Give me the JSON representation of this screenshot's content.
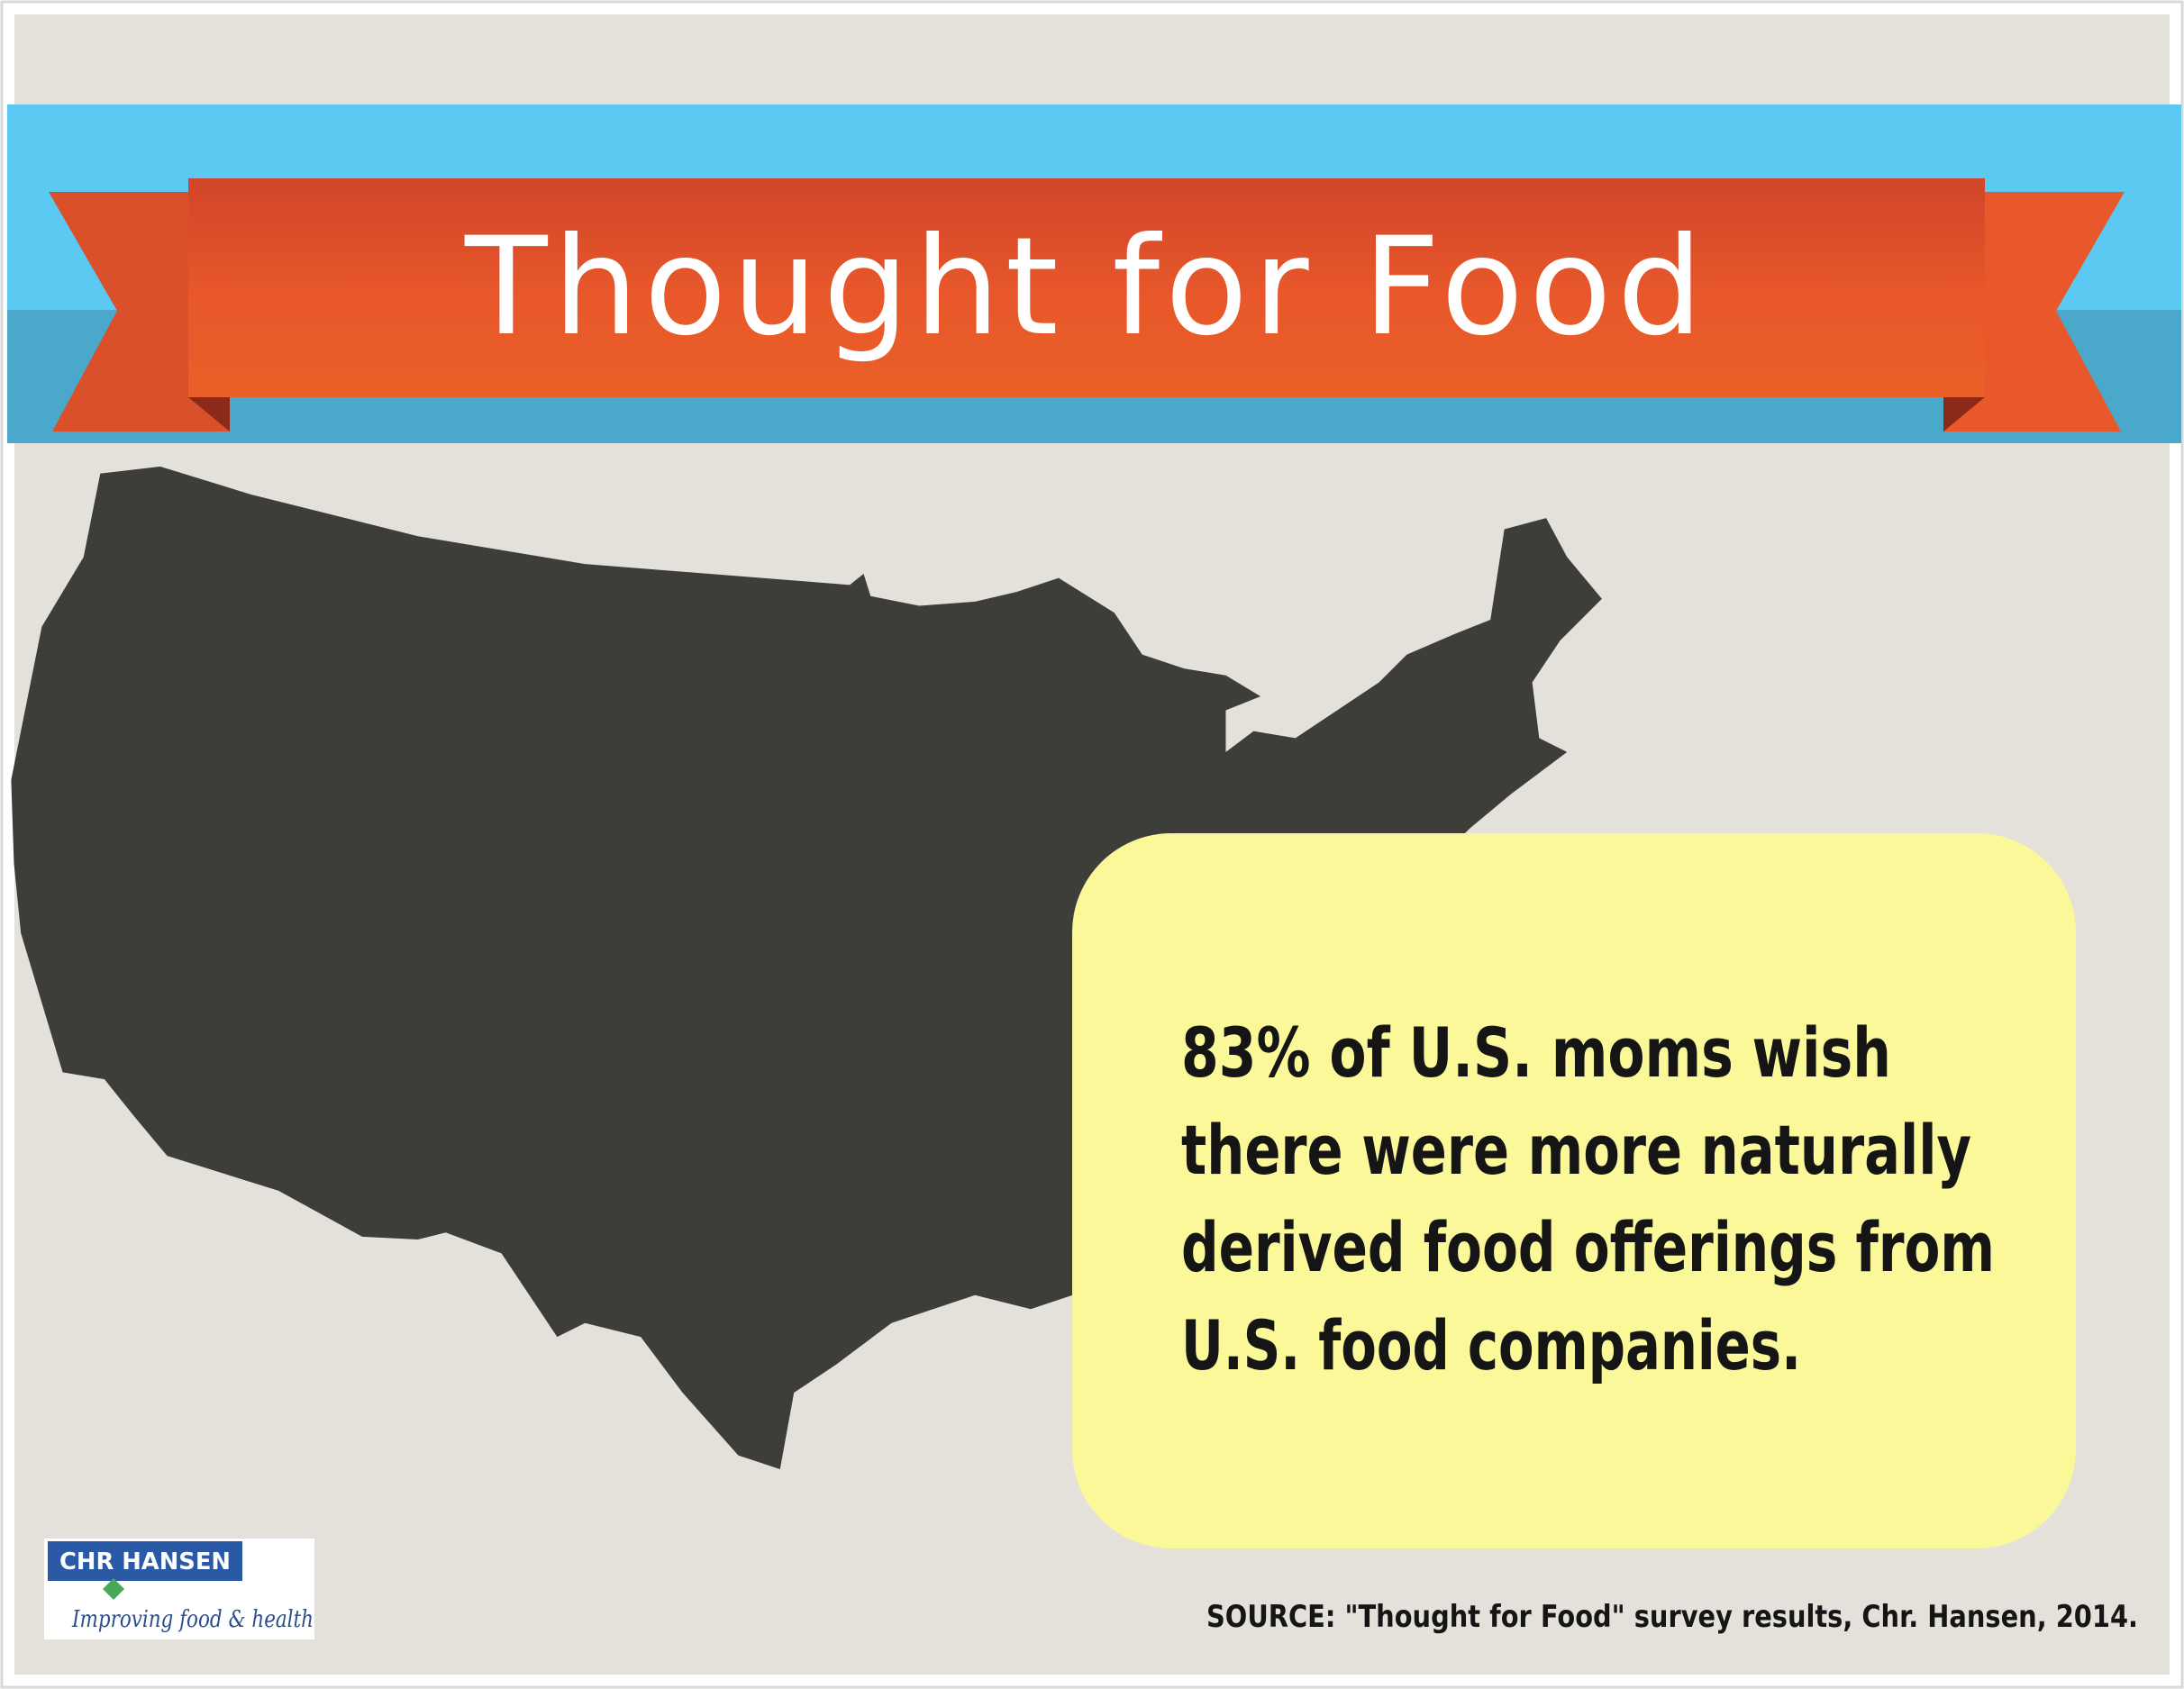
{
  "header": {
    "title": "Thought for Food"
  },
  "callout": {
    "lines": [
      "83% of U.S. moms wish",
      "there were more naturally",
      "derived food offerings from",
      "U.S. food companies."
    ]
  },
  "source": "SOURCE: \"Thought for Food\" survey results, Chr. Hansen, 2014.",
  "logo": {
    "name": "CHR HANSEN",
    "tagline": "Improving food & health"
  }
}
